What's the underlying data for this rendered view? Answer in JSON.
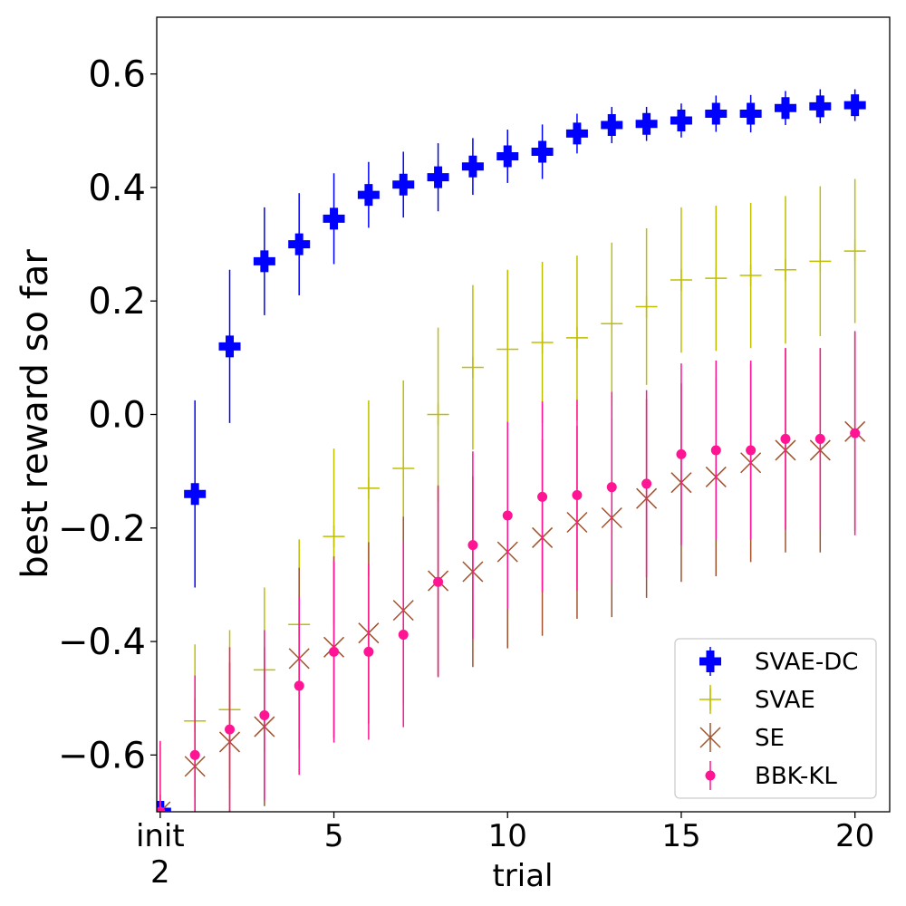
{
  "chart_data": {
    "type": "scatter",
    "title": "",
    "xlabel": "trial",
    "ylabel": "best reward so far",
    "xlim": [
      -0.1,
      21.0
    ],
    "ylim": [
      -0.7,
      0.7
    ],
    "grid": false,
    "legend_position": "bottom-right",
    "x_ticks": [
      {
        "value": 0,
        "label": "init",
        "label2": "2"
      },
      {
        "value": 5,
        "label": "5"
      },
      {
        "value": 10,
        "label": "10"
      },
      {
        "value": 15,
        "label": "15"
      },
      {
        "value": 20,
        "label": "20"
      }
    ],
    "y_ticks": [
      {
        "value": 0.6,
        "label": "0.6"
      },
      {
        "value": 0.4,
        "label": "0.4"
      },
      {
        "value": 0.2,
        "label": "0.2"
      },
      {
        "value": 0.0,
        "label": "0.0"
      },
      {
        "value": -0.2,
        "label": "−0.2"
      },
      {
        "value": -0.4,
        "label": "−0.4"
      },
      {
        "value": -0.6,
        "label": "−0.6"
      }
    ],
    "x": [
      0,
      1,
      2,
      3,
      4,
      5,
      6,
      7,
      8,
      9,
      10,
      11,
      12,
      13,
      14,
      15,
      16,
      17,
      18,
      19,
      20
    ],
    "series": [
      {
        "name": "SVAE-DC",
        "marker": "P",
        "color": "#0000ff",
        "values": [
          -0.7,
          -0.14,
          0.12,
          0.27,
          0.3,
          0.345,
          0.387,
          0.405,
          0.418,
          0.437,
          0.455,
          0.463,
          0.495,
          0.51,
          0.512,
          0.518,
          0.53,
          0.53,
          0.54,
          0.543,
          0.545
        ],
        "err": [
          0.03,
          0.165,
          0.135,
          0.095,
          0.09,
          0.08,
          0.058,
          0.058,
          0.06,
          0.05,
          0.047,
          0.048,
          0.035,
          0.032,
          0.03,
          0.03,
          0.032,
          0.033,
          0.03,
          0.03,
          0.028
        ]
      },
      {
        "name": "SVAE",
        "marker": "+",
        "color": "#bfbf00",
        "values": [
          -0.7,
          -0.54,
          -0.52,
          -0.45,
          -0.37,
          -0.215,
          -0.13,
          -0.095,
          0.0,
          0.083,
          0.115,
          0.127,
          0.135,
          0.16,
          0.19,
          0.237,
          0.24,
          0.245,
          0.255,
          0.27,
          0.288
        ],
        "err": [
          0.12,
          0.135,
          0.14,
          0.145,
          0.15,
          0.155,
          0.155,
          0.155,
          0.153,
          0.145,
          0.14,
          0.142,
          0.145,
          0.143,
          0.138,
          0.128,
          0.128,
          0.128,
          0.13,
          0.132,
          0.127
        ]
      },
      {
        "name": "SE",
        "marker": "x",
        "color": "#a0522d",
        "values": [
          -0.7,
          -0.62,
          -0.577,
          -0.55,
          -0.43,
          -0.41,
          -0.385,
          -0.345,
          -0.293,
          -0.277,
          -0.242,
          -0.217,
          -0.19,
          -0.182,
          -0.148,
          -0.12,
          -0.11,
          -0.085,
          -0.063,
          -0.063,
          -0.03
        ],
        "err": [
          0.03,
          0.12,
          0.14,
          0.14,
          0.16,
          0.16,
          0.16,
          0.165,
          0.168,
          0.168,
          0.17,
          0.173,
          0.17,
          0.175,
          0.175,
          0.175,
          0.175,
          0.175,
          0.18,
          0.18,
          0.175
        ]
      },
      {
        "name": "BBK-KL",
        "marker": "o",
        "color": "#ff1493",
        "values": [
          -0.7,
          -0.6,
          -0.555,
          -0.53,
          -0.478,
          -0.418,
          -0.418,
          -0.388,
          -0.295,
          -0.23,
          -0.178,
          -0.145,
          -0.142,
          -0.128,
          -0.122,
          -0.07,
          -0.063,
          -0.063,
          -0.043,
          -0.043,
          -0.033
        ],
        "err": [
          0.125,
          0.14,
          0.145,
          0.15,
          0.157,
          0.16,
          0.155,
          0.163,
          0.168,
          0.165,
          0.165,
          0.168,
          0.168,
          0.168,
          0.165,
          0.16,
          0.158,
          0.158,
          0.16,
          0.16,
          0.18
        ]
      }
    ]
  }
}
